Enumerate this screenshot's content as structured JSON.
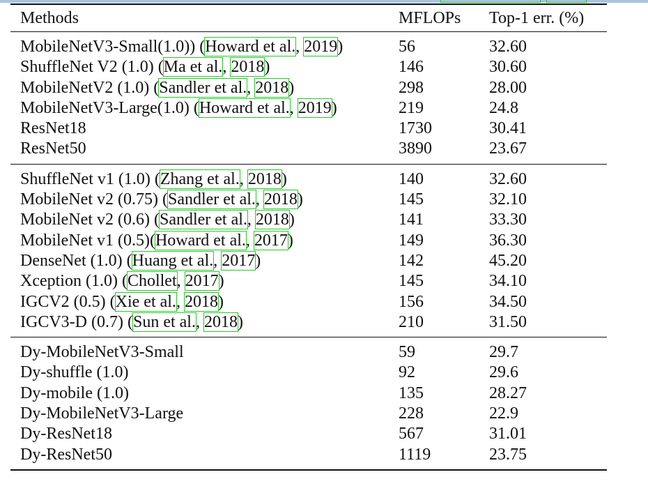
{
  "table": {
    "headers": {
      "methods": "Methods",
      "mflops": "MFLOPs",
      "top1": "Top-1 err. (%)"
    },
    "groups": [
      [
        {
          "pre": "MobileNetV3-Small(1.0)) (",
          "a": "Howard et al.",
          "mid": ", ",
          "y": "2019",
          "post": ")",
          "mflops": "56",
          "top1": "32.60"
        },
        {
          "pre": "ShuffleNet V2 (1.0) (",
          "a": "Ma et al.",
          "mid": ", ",
          "y": "2018",
          "post": ")",
          "mflops": "146",
          "top1": "30.60"
        },
        {
          "pre": "MobileNetV2 (1.0) (",
          "a": "Sandler et al.",
          "mid": ", ",
          "y": "2018",
          "post": ")",
          "mflops": "298",
          "top1": "28.00"
        },
        {
          "pre": "MobileNetV3-Large(1.0) (",
          "a": "Howard et al.",
          "mid": ", ",
          "y": "2019",
          "post": ")",
          "mflops": "219",
          "top1": "24.8"
        },
        {
          "pre": "ResNet18",
          "mflops": "1730",
          "top1": "30.41"
        },
        {
          "pre": "ResNet50",
          "mflops": "3890",
          "top1": "23.67"
        }
      ],
      [
        {
          "pre": "ShuffleNet v1 (1.0) (",
          "a": "Zhang et al.",
          "mid": ", ",
          "y": "2018",
          "post": ")",
          "mflops": "140",
          "top1": "32.60"
        },
        {
          "pre": "MobileNet v2 (0.75) (",
          "a": "Sandler et al.",
          "mid": ", ",
          "y": "2018",
          "post": ")",
          "mflops": "145",
          "top1": "32.10"
        },
        {
          "pre": "MobileNet v2 (0.6) (",
          "a": "Sandler et al.",
          "mid": ", ",
          "y": "2018",
          "post": ")",
          "mflops": "141",
          "top1": "33.30"
        },
        {
          "pre": "MobileNet v1 (0.5)(",
          "a": "Howard et al.",
          "mid": ", ",
          "y": "2017",
          "post": ")",
          "mflops": "149",
          "top1": "36.30"
        },
        {
          "pre": "DenseNet (1.0) (",
          "a": "Huang et al.",
          "mid": ", ",
          "y": "2017",
          "post": ")",
          "mflops": "142",
          "top1": "45.20"
        },
        {
          "pre": "Xception (1.0) (",
          "a": "Chollet",
          "mid": ", ",
          "y": "2017",
          "post": ")",
          "mflops": "145",
          "top1": "34.10"
        },
        {
          "pre": "IGCV2 (0.5) (",
          "a": "Xie et al.",
          "mid": ", ",
          "y": "2018",
          "post": ")",
          "mflops": "156",
          "top1": "34.50"
        },
        {
          "pre": "IGCV3-D (0.7) (",
          "a": "Sun et al.",
          "mid": ", ",
          "y": "2018",
          "post": ")",
          "mflops": "210",
          "top1": "31.50"
        }
      ],
      [
        {
          "pre": "Dy-MobileNetV3-Small",
          "mflops": "59",
          "top1": "29.7"
        },
        {
          "pre": "Dy-shuffle (1.0)",
          "mflops": "92",
          "top1": "29.6"
        },
        {
          "pre": "Dy-mobile (1.0)",
          "mflops": "135",
          "top1": "28.27"
        },
        {
          "pre": "Dy-MobileNetV3-Large",
          "mflops": "228",
          "top1": "22.9"
        },
        {
          "pre": "Dy-ResNet18",
          "mflops": "567",
          "top1": "31.01"
        },
        {
          "pre": "Dy-ResNet50",
          "mflops": "1119",
          "top1": "23.75"
        }
      ]
    ]
  }
}
